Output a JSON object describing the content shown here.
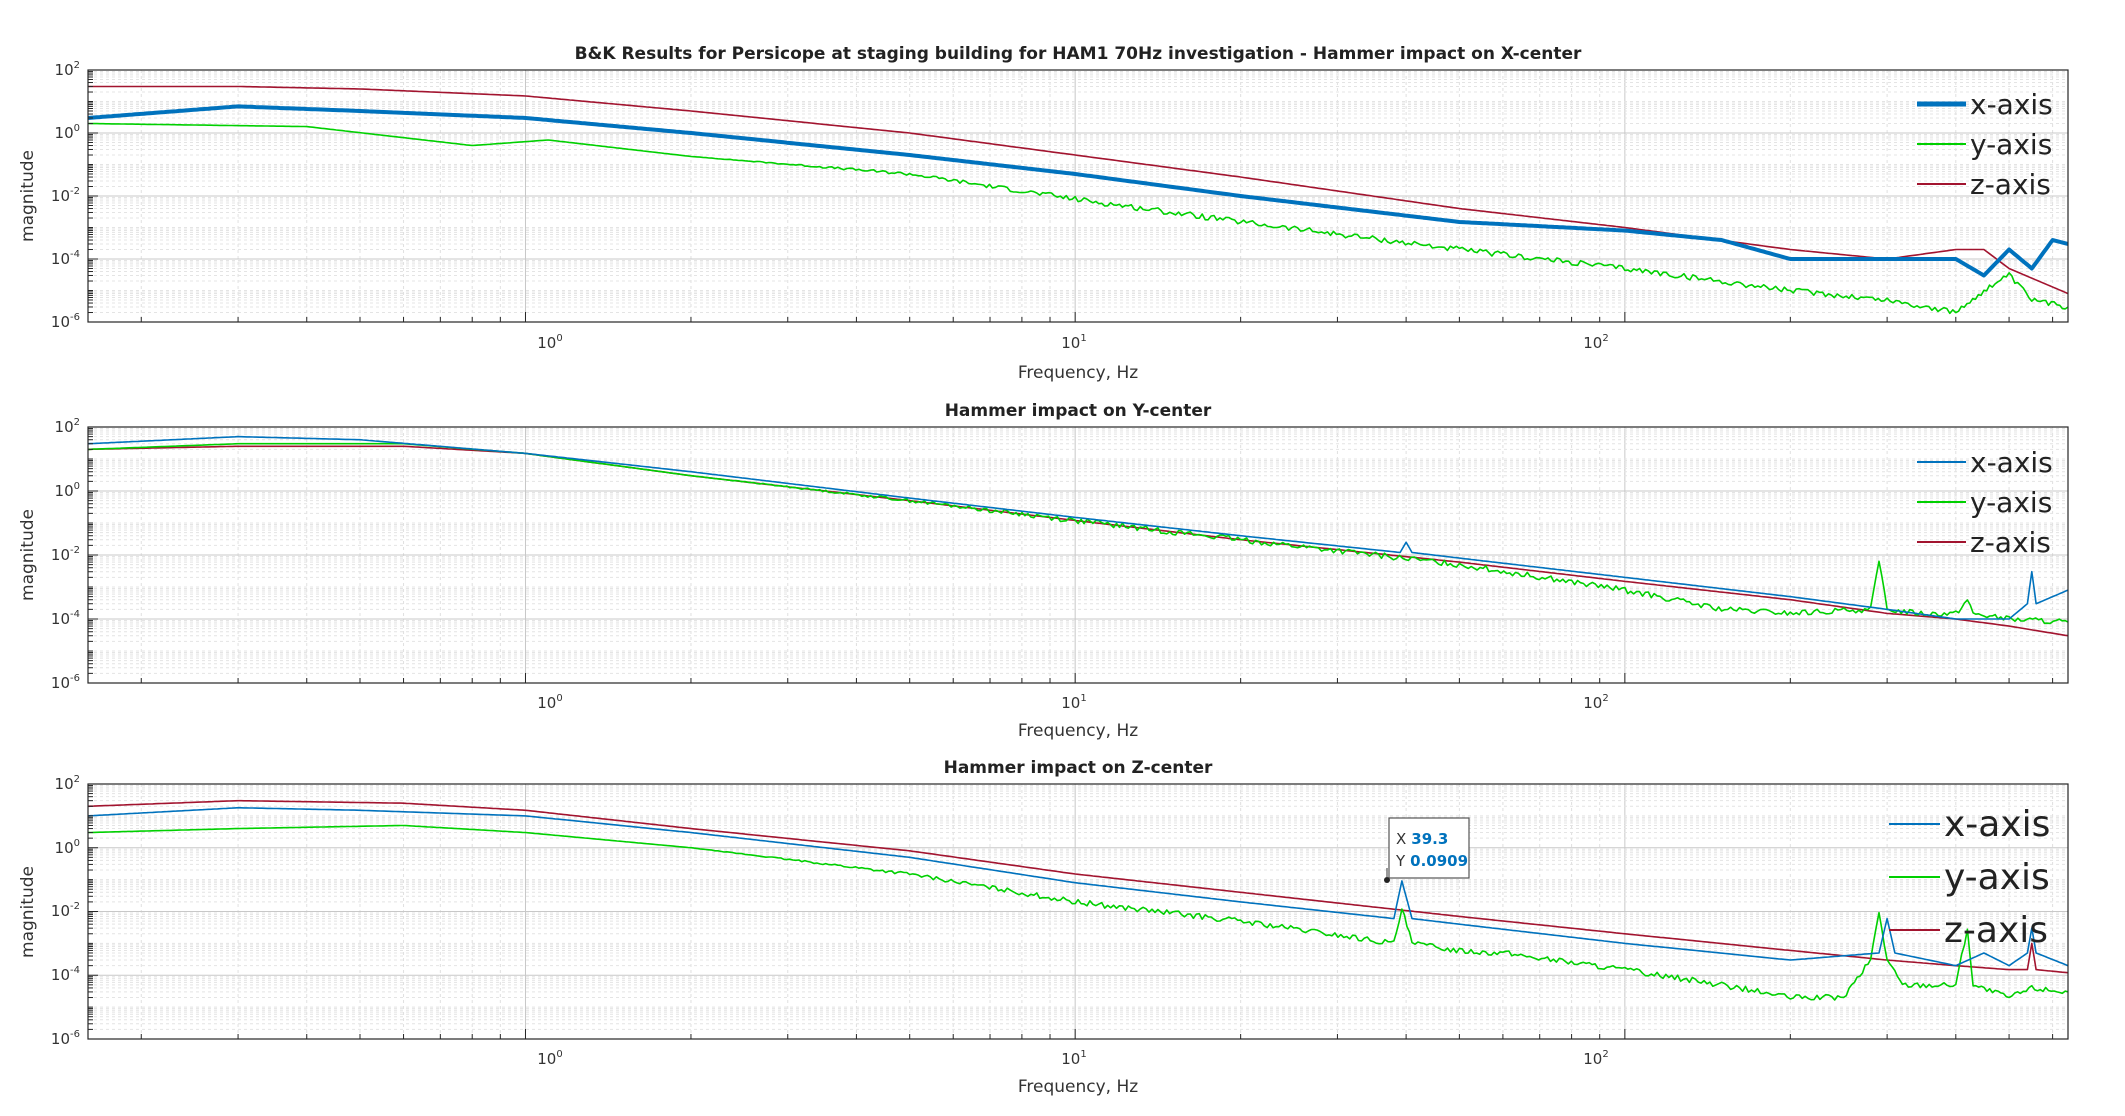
{
  "colors": {
    "x": "#0072BD",
    "y": "#00D000",
    "z": "#A2142F",
    "axes_bg": "#ffffff",
    "grid": "#d6d6d6"
  },
  "chart_data": [
    {
      "type": "line",
      "title": "B&K Results for Persicope at staging building for HAM1 70Hz investigation - Hammer impact on X-center",
      "xlabel": "Frequency, Hz",
      "ylabel": "magnitude",
      "xscale": "log",
      "yscale": "log",
      "xlim": [
        0.16,
        640
      ],
      "ylim": [
        1e-06,
        100
      ],
      "xticks": [
        {
          "value": 1,
          "mantissa": "10",
          "exp": "0"
        },
        {
          "value": 10,
          "mantissa": "10",
          "exp": "1"
        },
        {
          "value": 100,
          "mantissa": "10",
          "exp": "2"
        }
      ],
      "yticks": [
        {
          "value": 1e-06,
          "mantissa": "10",
          "exp": "-6"
        },
        {
          "value": 0.0001,
          "mantissa": "10",
          "exp": "-4"
        },
        {
          "value": 0.01,
          "mantissa": "10",
          "exp": "-2"
        },
        {
          "value": 1,
          "mantissa": "10",
          "exp": "0"
        },
        {
          "value": 100,
          "mantissa": "10",
          "exp": "2"
        }
      ],
      "grid": true,
      "legend": "top-right",
      "series": [
        {
          "name": "x-axis",
          "color_key": "x",
          "width": 4,
          "x": [
            0.16,
            0.3,
            0.5,
            1,
            2,
            5,
            10,
            20,
            50,
            100,
            150,
            200,
            300,
            400,
            450,
            500,
            550,
            600,
            640
          ],
          "y": [
            3,
            7,
            5,
            3,
            1,
            0.2,
            0.05,
            0.01,
            0.0015,
            0.0008,
            0.0004,
            0.0001,
            0.0001,
            0.0001,
            3e-05,
            0.0002,
            5e-05,
            0.0004,
            0.0003
          ]
        },
        {
          "name": "y-axis",
          "color_key": "y",
          "width": 1.6,
          "noise": true,
          "x": [
            0.16,
            0.4,
            0.8,
            1.1,
            2,
            5,
            10,
            20,
            50,
            100,
            200,
            300,
            400,
            450,
            500,
            550,
            640
          ],
          "y": [
            2,
            1.6,
            0.4,
            0.6,
            0.18,
            0.05,
            0.008,
            0.0015,
            0.0002,
            5e-05,
            1e-05,
            5e-06,
            2e-06,
            1e-05,
            3e-05,
            5e-06,
            3e-06
          ]
        },
        {
          "name": "z-axis",
          "color_key": "z",
          "width": 1.6,
          "x": [
            0.16,
            0.3,
            0.5,
            1,
            2,
            5,
            10,
            20,
            50,
            100,
            200,
            300,
            400,
            450,
            500,
            640
          ],
          "y": [
            30,
            30,
            25,
            15,
            5,
            1,
            0.2,
            0.04,
            0.004,
            0.001,
            0.0002,
            0.0001,
            0.0002,
            0.0002,
            5e-05,
            8e-06
          ]
        }
      ]
    },
    {
      "type": "line",
      "title": "Hammer impact on Y-center",
      "xlabel": "Frequency, Hz",
      "ylabel": "magnitude",
      "xscale": "log",
      "yscale": "log",
      "xlim": [
        0.16,
        640
      ],
      "ylim": [
        1e-06,
        100
      ],
      "xticks": [
        {
          "value": 1,
          "mantissa": "10",
          "exp": "0"
        },
        {
          "value": 10,
          "mantissa": "10",
          "exp": "1"
        },
        {
          "value": 100,
          "mantissa": "10",
          "exp": "2"
        }
      ],
      "yticks": [
        {
          "value": 1e-06,
          "mantissa": "10",
          "exp": "-6"
        },
        {
          "value": 0.0001,
          "mantissa": "10",
          "exp": "-4"
        },
        {
          "value": 0.01,
          "mantissa": "10",
          "exp": "-2"
        },
        {
          "value": 1,
          "mantissa": "10",
          "exp": "0"
        },
        {
          "value": 100,
          "mantissa": "10",
          "exp": "2"
        }
      ],
      "grid": true,
      "legend": "top-right",
      "series": [
        {
          "name": "x-axis",
          "color_key": "x",
          "width": 1.6,
          "x": [
            0.16,
            0.3,
            0.5,
            1,
            2,
            5,
            10,
            20,
            39,
            40,
            41,
            50,
            100,
            200,
            300,
            400,
            450,
            500,
            540,
            550,
            560,
            640
          ],
          "y": [
            30,
            50,
            40,
            15,
            4,
            0.6,
            0.15,
            0.04,
            0.012,
            0.025,
            0.012,
            0.008,
            0.002,
            0.0005,
            0.0002,
            0.0001,
            0.0001,
            0.0001,
            0.0003,
            0.003,
            0.0003,
            0.0008
          ]
        },
        {
          "name": "y-axis",
          "color_key": "y",
          "width": 1.6,
          "noise": true,
          "x": [
            0.16,
            0.3,
            0.6,
            1,
            2,
            5,
            10,
            20,
            50,
            100,
            150,
            200,
            280,
            290,
            300,
            350,
            400,
            420,
            430,
            500,
            640
          ],
          "y": [
            20,
            30,
            30,
            15,
            3,
            0.5,
            0.12,
            0.03,
            0.005,
            0.0008,
            0.0002,
            0.00015,
            0.0002,
            0.006,
            0.0002,
            0.00015,
            0.00015,
            0.0004,
            0.00015,
            0.0001,
            8e-05
          ]
        },
        {
          "name": "z-axis",
          "color_key": "z",
          "width": 1.6,
          "x": [
            0.16,
            0.3,
            0.6,
            1,
            2,
            5,
            10,
            20,
            50,
            100,
            200,
            300,
            400,
            500,
            640
          ],
          "y": [
            20,
            25,
            25,
            15,
            3,
            0.5,
            0.12,
            0.03,
            0.006,
            0.0015,
            0.0004,
            0.00015,
            0.0001,
            6e-05,
            3e-05
          ]
        }
      ]
    },
    {
      "type": "line",
      "title": "Hammer impact on Z-center",
      "xlabel": "Frequency, Hz",
      "ylabel": "magnitude",
      "xscale": "log",
      "yscale": "log",
      "xlim": [
        0.16,
        640
      ],
      "ylim": [
        1e-06,
        100
      ],
      "xticks": [
        {
          "value": 1,
          "mantissa": "10",
          "exp": "0"
        },
        {
          "value": 10,
          "mantissa": "10",
          "exp": "1"
        },
        {
          "value": 100,
          "mantissa": "10",
          "exp": "2"
        }
      ],
      "yticks": [
        {
          "value": 1e-06,
          "mantissa": "10",
          "exp": "-6"
        },
        {
          "value": 0.0001,
          "mantissa": "10",
          "exp": "-4"
        },
        {
          "value": 0.01,
          "mantissa": "10",
          "exp": "-2"
        },
        {
          "value": 1,
          "mantissa": "10",
          "exp": "0"
        },
        {
          "value": 100,
          "mantissa": "10",
          "exp": "2"
        }
      ],
      "grid": true,
      "legend": "top-right",
      "datatip": {
        "x_label": "X",
        "x_value": "39.3",
        "y_label": "Y",
        "y_value": "0.0909",
        "point": [
          39.3,
          0.0909
        ]
      },
      "series": [
        {
          "name": "x-axis",
          "color_key": "x",
          "width": 1.6,
          "x": [
            0.16,
            0.3,
            0.5,
            1,
            2,
            5,
            10,
            20,
            38,
            39.3,
            41,
            50,
            100,
            200,
            290,
            300,
            310,
            400,
            450,
            500,
            540,
            550,
            560,
            640
          ],
          "y": [
            10,
            18,
            15,
            10,
            3,
            0.5,
            0.08,
            0.02,
            0.006,
            0.0909,
            0.006,
            0.004,
            0.001,
            0.0003,
            0.0005,
            0.006,
            0.0005,
            0.0002,
            0.0005,
            0.0002,
            0.0005,
            0.003,
            0.0005,
            0.0002
          ]
        },
        {
          "name": "y-axis",
          "color_key": "y",
          "width": 1.6,
          "noise": true,
          "x": [
            0.16,
            0.3,
            0.6,
            1,
            2,
            5,
            10,
            20,
            38,
            39.3,
            41,
            50,
            60,
            100,
            150,
            200,
            250,
            280,
            290,
            300,
            320,
            400,
            420,
            430,
            500,
            550,
            640
          ],
          "y": [
            3,
            4,
            5,
            3,
            1,
            0.15,
            0.02,
            0.005,
            0.001,
            0.012,
            0.001,
            0.0006,
            0.0005,
            0.00015,
            5e-05,
            2e-05,
            2e-05,
            0.0003,
            0.01,
            0.0003,
            5e-05,
            5e-05,
            0.003,
            5e-05,
            2e-05,
            4e-05,
            3e-05
          ]
        },
        {
          "name": "z-axis",
          "color_key": "z",
          "width": 1.6,
          "x": [
            0.16,
            0.3,
            0.6,
            1,
            2,
            5,
            10,
            20,
            50,
            100,
            200,
            300,
            400,
            500,
            540,
            550,
            560,
            640
          ],
          "y": [
            20,
            30,
            25,
            15,
            4,
            0.8,
            0.15,
            0.04,
            0.007,
            0.002,
            0.0006,
            0.0003,
            0.0002,
            0.00015,
            0.00015,
            0.001,
            0.00015,
            0.00012
          ]
        }
      ]
    }
  ]
}
